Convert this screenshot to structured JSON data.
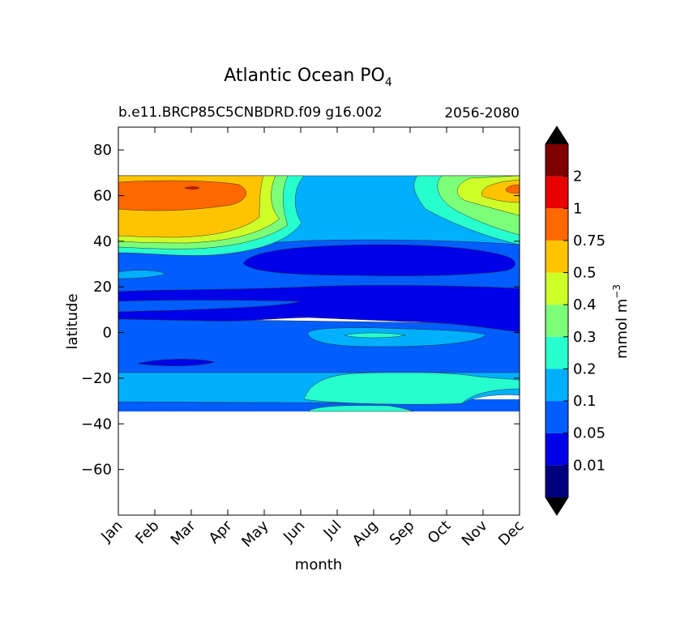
{
  "chart_data": {
    "type": "contourf",
    "title": "Atlantic Ocean PO",
    "title_subscript": "4",
    "subtitle_left": "b.e11.BRCP85C5CNBDRD.f09 g16.002",
    "subtitle_right": "2056-2080",
    "xlabel": "month",
    "ylabel": "latitude",
    "x_ticks": [
      "Jan",
      "Feb",
      "Mar",
      "Apr",
      "May",
      "Jun",
      "Jul",
      "Aug",
      "Sep",
      "Oct",
      "Nov",
      "Dec"
    ],
    "y_ticks": [
      "80",
      "60",
      "40",
      "20",
      "0",
      "−20",
      "−40",
      "−60"
    ],
    "ylim": [
      -80,
      90
    ],
    "data_lat_range": [
      -34,
      69
    ],
    "colorbar": {
      "label": "mmol m",
      "label_sup": "−3",
      "levels": [
        "0.01",
        "0.05",
        "0.1",
        "0.2",
        "0.3",
        "0.4",
        "0.5",
        "0.75",
        "1",
        "2"
      ],
      "colors": [
        "#00007f",
        "#0000e8",
        "#005dff",
        "#00b0ff",
        "#27ffce",
        "#7cff79",
        "#ceff29",
        "#ffc400",
        "#ff6800",
        "#e80000",
        "#7f0000"
      ],
      "under_color": "#000000",
      "over_color": "#000000",
      "extend": "both"
    },
    "bands_description": [
      {
        "lat": [
          -34,
          -30
        ],
        "level_class": "0.05-0.1 (Jan-Apr, Nov-Dec); 0.2-0.3 (Aug)"
      },
      {
        "lat": [
          -30,
          -17
        ],
        "level_class": "0.1-0.2 with 0.2-0.3 patch Jun-Oct"
      },
      {
        "lat": [
          -17,
          8
        ],
        "level_class": "0.05-0.1 with 0.01-0.05 patch near -12 (Feb-Mar)"
      },
      {
        "lat": [
          8,
          20
        ],
        "level_class": "0.01-0.05"
      },
      {
        "lat": [
          20,
          38
        ],
        "level_class": "0.05-0.1 with 0.01-0.05 core Jun-Nov"
      },
      {
        "lat": [
          38,
          69
        ],
        "level_class": "0.5-1 in winter (Jan-Apr, Dec); 0.1-0.2 in summer"
      }
    ]
  }
}
